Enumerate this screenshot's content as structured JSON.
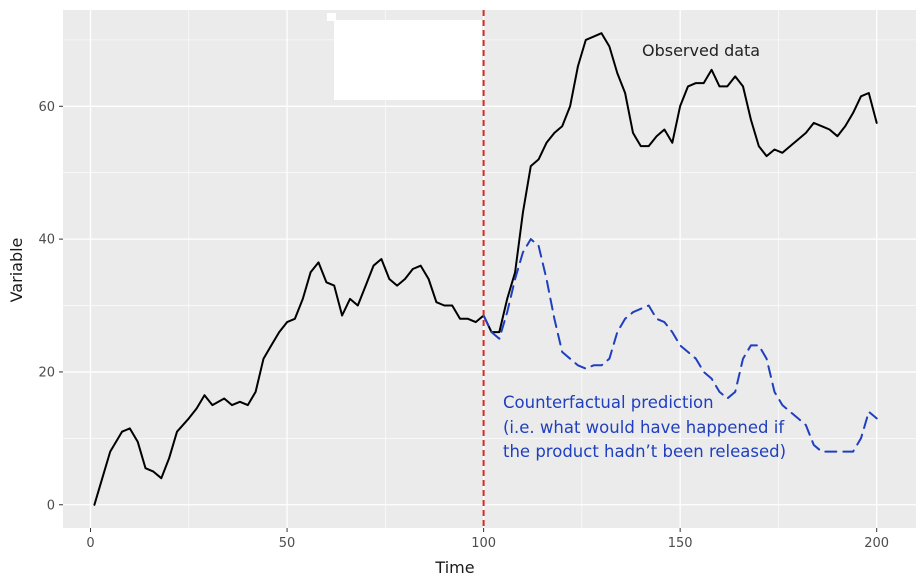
{
  "chart_data": {
    "type": "line",
    "xlabel": "Time",
    "ylabel": "Variable",
    "xlim": [
      -7,
      210
    ],
    "ylim": [
      -3.5,
      74.5
    ],
    "xticks": [
      0,
      50,
      100,
      150,
      200
    ],
    "yticks": [
      0,
      20,
      40,
      60
    ],
    "grid": true,
    "intervention_x": 100,
    "colors": {
      "panel": "#ebebeb",
      "grid": "#ffffff",
      "observed": "#000000",
      "counterfactual": "#1f3fbf",
      "intervention": "#d62d20"
    },
    "series": [
      {
        "x": [
          1,
          3,
          5,
          8,
          10,
          12,
          14,
          16,
          18,
          20,
          22,
          25,
          27,
          29,
          31,
          34,
          36,
          38,
          40,
          42,
          44,
          46,
          48,
          50,
          52,
          54,
          56,
          58,
          60,
          62,
          64,
          66,
          68,
          70,
          72,
          74,
          76,
          78,
          80,
          82,
          84,
          86,
          88,
          90,
          92,
          94,
          96,
          98,
          100,
          102,
          104,
          106,
          108,
          110,
          112,
          114,
          116,
          118,
          120,
          122,
          124,
          126,
          128,
          130,
          132,
          134,
          136,
          138,
          140,
          142,
          144,
          146,
          148,
          150,
          152,
          154,
          156,
          158,
          160,
          162,
          164,
          166,
          168,
          170,
          172,
          174,
          176,
          178,
          180,
          182,
          184,
          186,
          188,
          190,
          192,
          194,
          196,
          198,
          200
        ],
        "values": [
          0,
          4,
          8,
          11,
          11.5,
          9.5,
          5.5,
          5,
          4,
          7,
          11,
          13,
          14.5,
          16.5,
          15,
          16,
          15,
          15.5,
          15,
          17,
          22,
          24,
          26,
          27.5,
          28,
          31,
          35,
          36.5,
          33.5,
          33,
          28.5,
          31,
          30,
          33,
          36,
          37,
          34,
          33,
          34,
          35.5,
          36,
          34,
          30.5,
          30,
          30,
          28,
          28,
          27.5,
          28.5,
          26,
          26,
          31,
          35,
          44,
          51,
          52,
          54.5,
          56,
          57,
          60,
          66,
          70,
          70.5,
          71,
          69,
          65,
          62,
          56,
          54,
          54,
          55.5,
          56.5,
          54.5,
          60,
          63,
          63.5,
          63.5,
          65.5,
          63,
          63,
          64.5,
          63,
          58,
          54,
          52.5,
          53.5,
          53,
          54,
          55,
          56,
          57.5,
          57,
          56.5,
          55.5,
          57,
          59,
          61.5,
          62,
          57.5
        ]
      },
      {
        "x": [
          100,
          102,
          104,
          106,
          108,
          110,
          112,
          114,
          116,
          118,
          120,
          122,
          124,
          126,
          128,
          130,
          132,
          134,
          136,
          138,
          140,
          142,
          144,
          146,
          148,
          150,
          152,
          154,
          156,
          158,
          160,
          162,
          164,
          166,
          168,
          170,
          172,
          174,
          176,
          178,
          180,
          182,
          184,
          186,
          188,
          190,
          192,
          194,
          196,
          198,
          200
        ],
        "values": [
          28.5,
          26,
          25,
          29,
          34,
          38,
          40,
          39,
          34,
          28,
          23,
          22,
          21,
          20.5,
          21,
          21,
          22,
          26,
          28,
          29,
          29.5,
          30,
          28,
          27.5,
          26,
          24,
          23,
          22,
          20,
          19,
          17,
          16,
          17,
          22,
          24,
          24,
          22,
          17,
          15,
          14,
          13,
          12,
          9,
          8,
          8,
          8,
          8,
          8,
          10,
          14,
          13
        ]
      }
    ],
    "annotations": {
      "observed": "Observed data",
      "counterfactual_lines": [
        "Counterfactual prediction",
        "(i.e. what would have happened if",
        "the product hadn’t been released)"
      ]
    }
  }
}
